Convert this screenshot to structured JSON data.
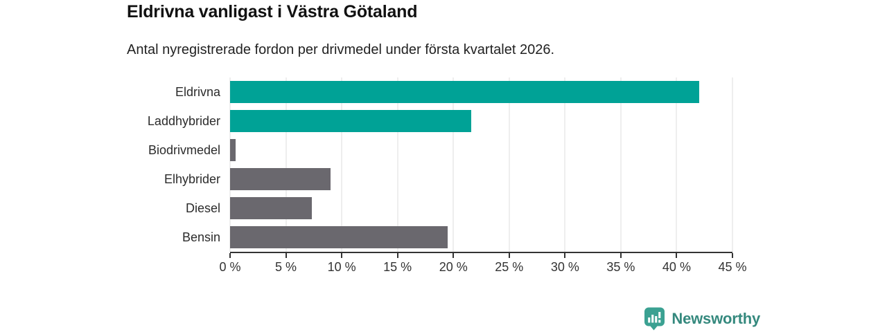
{
  "title": "Eldrivna vanligast i Västra Götaland",
  "subtitle": "Antal nyregistrerade fordon per drivmedel under första kvartalet 2026.",
  "chart_data": {
    "type": "bar",
    "orientation": "horizontal",
    "title": "Eldrivna vanligast i Västra Götaland",
    "subtitle": "Antal nyregistrerade fordon per drivmedel under första kvartalet 2026.",
    "categories": [
      "Eldrivna",
      "Laddhybrider",
      "Biodrivmedel",
      "Elhybrider",
      "Diesel",
      "Bensin"
    ],
    "values": [
      42,
      21.6,
      0.5,
      9,
      7.3,
      19.5
    ],
    "unit": "%",
    "xlim": [
      0,
      45
    ],
    "x_ticks": [
      0,
      5,
      10,
      15,
      20,
      25,
      30,
      35,
      40,
      45
    ],
    "x_tick_suffix": " %",
    "xlabel": "",
    "ylabel": "",
    "grid": "vertical",
    "legend": "none",
    "bar_colors": [
      "#00A296",
      "#00A296",
      "#6A686E",
      "#6A686E",
      "#6A686E",
      "#6A686E"
    ],
    "colors": {
      "highlight": "#00A296",
      "default": "#6A686E",
      "gridline": "#DDDDDD",
      "axis": "#333333"
    }
  },
  "branding": {
    "logo_text": "Newsworthy",
    "logo_text_color": "#35897E",
    "logo_icon_color": "#3BA192",
    "logo_icon_bar_color": "#FFFFFF"
  }
}
